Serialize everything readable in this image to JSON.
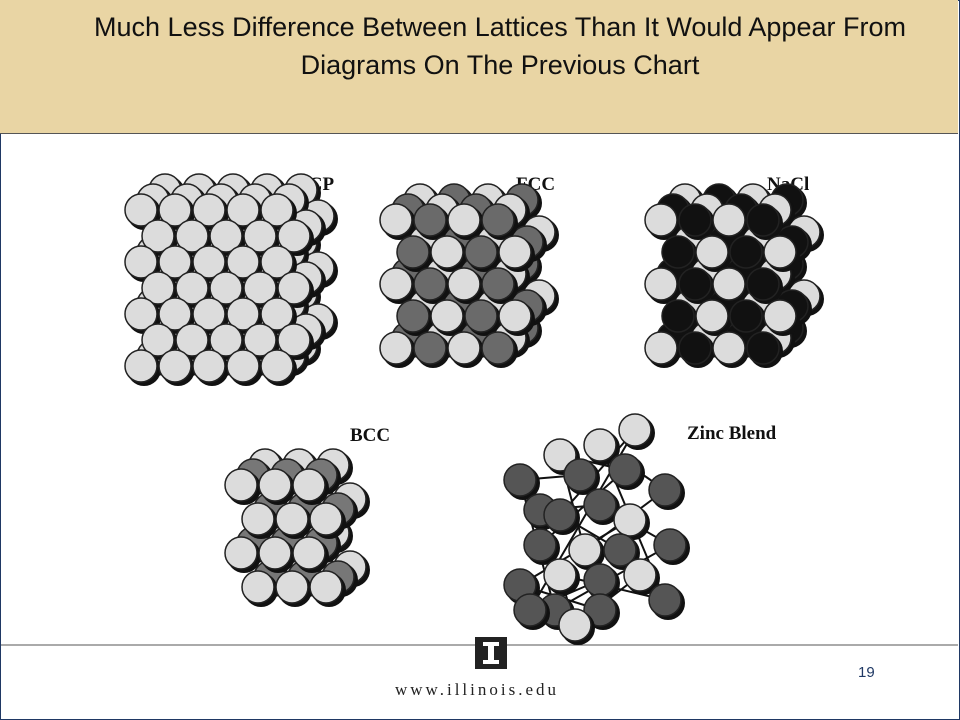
{
  "header": {
    "title": "Much Less Difference Between Lattices Than It Would Appear From Diagrams On The Previous Chart"
  },
  "figures": [
    {
      "label": "HCP"
    },
    {
      "label": "FCC"
    },
    {
      "label": "NaCl"
    },
    {
      "label": "BCC"
    },
    {
      "label": "Zinc Blend"
    }
  ],
  "footer": {
    "page_number": "19",
    "url": "www.illinois.edu"
  }
}
